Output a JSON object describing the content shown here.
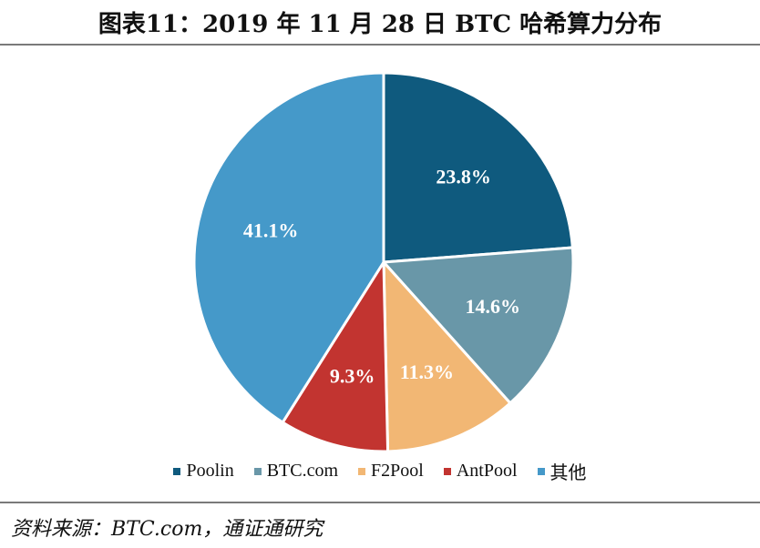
{
  "title": "图表11：2019 年 11 月 28 日 BTC 哈希算力分布",
  "source": "资料来源：BTC.com，通证通研究",
  "chart_data": {
    "type": "pie",
    "slices": [
      {
        "name": "Poolin",
        "value": 23.8,
        "label": "23.8%",
        "color": "#0f5a7e"
      },
      {
        "name": "BTC.com",
        "value": 14.6,
        "label": "14.6%",
        "color": "#6997a8"
      },
      {
        "name": "F2Pool",
        "value": 11.3,
        "label": "11.3%",
        "color": "#f2b774"
      },
      {
        "name": "AntPool",
        "value": 9.3,
        "label": "9.3%",
        "color": "#c23430"
      },
      {
        "name": "其他",
        "value": 41.1,
        "label": "41.1%",
        "color": "#4599c9"
      }
    ],
    "legend_position": "bottom",
    "start": "12 o'clock, clockwise"
  }
}
